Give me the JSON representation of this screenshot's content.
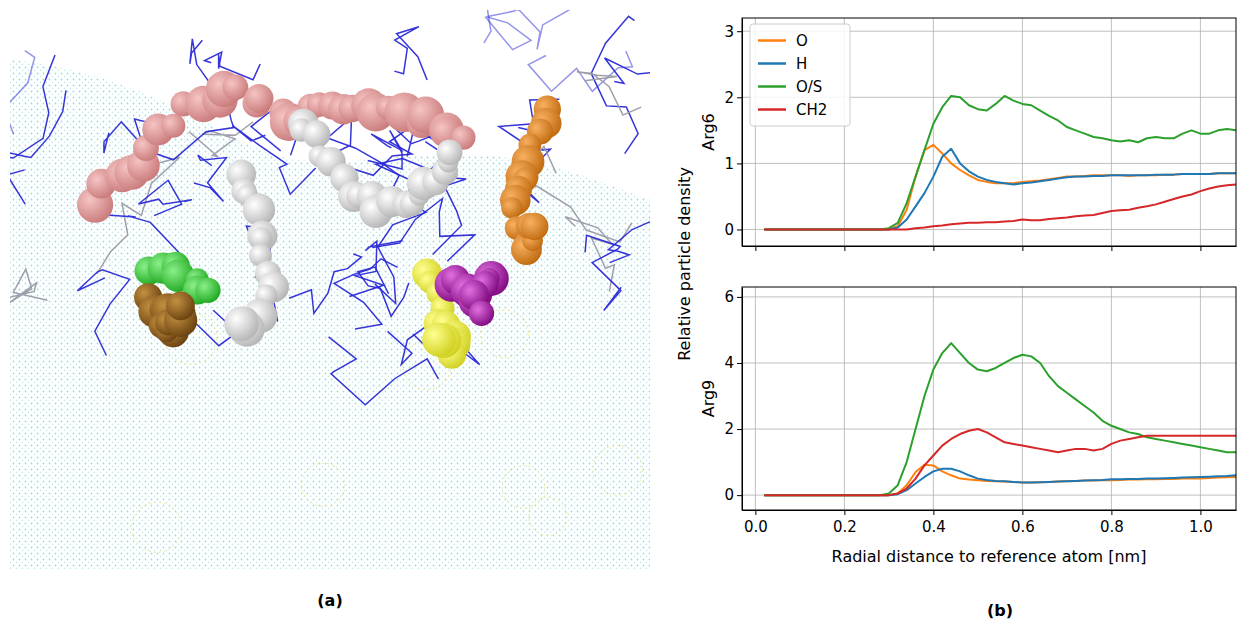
{
  "panel_labels": [
    "(a)",
    "(b)"
  ],
  "supylabel": "Relative particle density",
  "chart_data": [
    {
      "type": "line",
      "ylabel": "Arg6",
      "grid": true,
      "legend": "upper left",
      "tick_labels": "y",
      "xlim": [
        -0.03,
        1.08
      ],
      "ylim": [
        -0.25,
        3.2
      ],
      "xticks": [
        0,
        0.2,
        0.4,
        0.6,
        0.8,
        1
      ],
      "yticks": [
        0,
        1,
        2,
        3
      ],
      "x": [
        0.02,
        0.04,
        0.06,
        0.08,
        0.1,
        0.12,
        0.14,
        0.16,
        0.18,
        0.2,
        0.22,
        0.24,
        0.26,
        0.28,
        0.3,
        0.32,
        0.34,
        0.36,
        0.38,
        0.4,
        0.42,
        0.44,
        0.46,
        0.48,
        0.5,
        0.52,
        0.54,
        0.56,
        0.58,
        0.6,
        0.62,
        0.64,
        0.66,
        0.68,
        0.7,
        0.72,
        0.74,
        0.76,
        0.78,
        0.8,
        0.82,
        0.84,
        0.86,
        0.88,
        0.9,
        0.92,
        0.94,
        0.96,
        0.98,
        1.0,
        1.02,
        1.04,
        1.06,
        1.08
      ],
      "series": [
        {
          "name": "O",
          "color": "#ff7f0e",
          "values": [
            0,
            0,
            0,
            0,
            0,
            0,
            0,
            0,
            0,
            0,
            0,
            0,
            0,
            0,
            0,
            0.05,
            0.3,
            0.8,
            1.2,
            1.28,
            1.15,
            1.0,
            0.9,
            0.82,
            0.75,
            0.72,
            0.7,
            0.7,
            0.7,
            0.72,
            0.73,
            0.74,
            0.76,
            0.78,
            0.8,
            0.8,
            0.81,
            0.82,
            0.82,
            0.82,
            0.82,
            0.81,
            0.82,
            0.82,
            0.82,
            0.83,
            0.83,
            0.84,
            0.84,
            0.84,
            0.84,
            0.85,
            0.85,
            0.85
          ]
        },
        {
          "name": "H",
          "color": "#1f77b4",
          "values": [
            0,
            0,
            0,
            0,
            0,
            0,
            0,
            0,
            0,
            0,
            0,
            0,
            0,
            0,
            0,
            0.03,
            0.15,
            0.35,
            0.55,
            0.8,
            1.1,
            1.22,
            1.0,
            0.88,
            0.8,
            0.75,
            0.72,
            0.7,
            0.68,
            0.7,
            0.71,
            0.73,
            0.75,
            0.77,
            0.79,
            0.8,
            0.8,
            0.81,
            0.81,
            0.82,
            0.82,
            0.82,
            0.82,
            0.82,
            0.83,
            0.83,
            0.83,
            0.84,
            0.84,
            0.84,
            0.84,
            0.85,
            0.85,
            0.85
          ]
        },
        {
          "name": "O/S",
          "color": "#2ca02c",
          "values": [
            0,
            0,
            0,
            0,
            0,
            0,
            0,
            0,
            0,
            0,
            0,
            0,
            0,
            0,
            0.02,
            0.1,
            0.4,
            0.8,
            1.2,
            1.6,
            1.85,
            2.02,
            2.0,
            1.88,
            1.82,
            1.8,
            1.9,
            2.02,
            1.95,
            1.9,
            1.88,
            1.8,
            1.72,
            1.65,
            1.55,
            1.5,
            1.45,
            1.4,
            1.38,
            1.35,
            1.33,
            1.35,
            1.32,
            1.38,
            1.4,
            1.38,
            1.38,
            1.45,
            1.5,
            1.45,
            1.45,
            1.5,
            1.52,
            1.5
          ]
        },
        {
          "name": "CH2",
          "color": "#d62728",
          "values": [
            0,
            0,
            0,
            0,
            0,
            0,
            0,
            0,
            0,
            0,
            0,
            0,
            0,
            0,
            0,
            0,
            0,
            0.02,
            0.03,
            0.05,
            0.06,
            0.08,
            0.09,
            0.1,
            0.1,
            0.11,
            0.11,
            0.12,
            0.13,
            0.15,
            0.14,
            0.14,
            0.16,
            0.17,
            0.18,
            0.2,
            0.21,
            0.22,
            0.25,
            0.28,
            0.29,
            0.3,
            0.33,
            0.35,
            0.38,
            0.42,
            0.46,
            0.5,
            0.53,
            0.58,
            0.62,
            0.65,
            0.67,
            0.68
          ]
        }
      ]
    },
    {
      "type": "line",
      "ylabel": "Arg9",
      "xlabel": "Radial distance to reference atom [nm]",
      "grid": true,
      "xlim": [
        -0.03,
        1.08
      ],
      "ylim": [
        -0.45,
        6.3
      ],
      "xticks": [
        {
          "value": 0,
          "label": "0.0"
        },
        0.2,
        0.4,
        0.6,
        0.8,
        {
          "value": 1,
          "label": "1.0"
        }
      ],
      "yticks": [
        0,
        2,
        4,
        6
      ],
      "x": [
        0.02,
        0.04,
        0.06,
        0.08,
        0.1,
        0.12,
        0.14,
        0.16,
        0.18,
        0.2,
        0.22,
        0.24,
        0.26,
        0.28,
        0.3,
        0.32,
        0.34,
        0.36,
        0.38,
        0.4,
        0.42,
        0.44,
        0.46,
        0.48,
        0.5,
        0.52,
        0.54,
        0.56,
        0.58,
        0.6,
        0.62,
        0.64,
        0.66,
        0.68,
        0.7,
        0.72,
        0.74,
        0.76,
        0.78,
        0.8,
        0.82,
        0.84,
        0.86,
        0.88,
        0.9,
        0.92,
        0.94,
        0.96,
        0.98,
        1.0,
        1.02,
        1.04,
        1.06,
        1.08
      ],
      "series": [
        {
          "color": "#ff7f0e",
          "values": [
            0,
            0,
            0,
            0,
            0,
            0,
            0,
            0,
            0,
            0,
            0,
            0,
            0,
            0,
            0,
            0.05,
            0.3,
            0.7,
            0.92,
            0.9,
            0.72,
            0.6,
            0.5,
            0.47,
            0.45,
            0.43,
            0.42,
            0.41,
            0.4,
            0.38,
            0.38,
            0.39,
            0.4,
            0.41,
            0.42,
            0.43,
            0.44,
            0.44,
            0.45,
            0.45,
            0.46,
            0.47,
            0.47,
            0.48,
            0.48,
            0.49,
            0.49,
            0.5,
            0.5,
            0.5,
            0.52,
            0.53,
            0.54,
            0.55
          ]
        },
        {
          "color": "#1f77b4",
          "values": [
            0,
            0,
            0,
            0,
            0,
            0,
            0,
            0,
            0,
            0,
            0,
            0,
            0,
            0,
            0,
            0.03,
            0.15,
            0.35,
            0.55,
            0.72,
            0.8,
            0.8,
            0.72,
            0.6,
            0.5,
            0.46,
            0.43,
            0.42,
            0.4,
            0.38,
            0.38,
            0.39,
            0.4,
            0.41,
            0.42,
            0.43,
            0.44,
            0.45,
            0.46,
            0.48,
            0.48,
            0.49,
            0.49,
            0.5,
            0.5,
            0.51,
            0.52,
            0.53,
            0.54,
            0.55,
            0.56,
            0.57,
            0.58,
            0.6
          ]
        },
        {
          "color": "#2ca02c",
          "values": [
            0,
            0,
            0,
            0,
            0,
            0,
            0,
            0,
            0,
            0,
            0,
            0,
            0,
            0,
            0.05,
            0.3,
            1.0,
            2.0,
            3.0,
            3.8,
            4.3,
            4.6,
            4.3,
            4.0,
            3.8,
            3.75,
            3.85,
            4.0,
            4.15,
            4.25,
            4.2,
            4.0,
            3.6,
            3.3,
            3.1,
            2.9,
            2.7,
            2.5,
            2.25,
            2.1,
            2.0,
            1.9,
            1.85,
            1.75,
            1.7,
            1.65,
            1.6,
            1.55,
            1.5,
            1.45,
            1.4,
            1.35,
            1.3,
            1.3
          ]
        },
        {
          "color": "#d62728",
          "values": [
            0,
            0,
            0,
            0,
            0,
            0,
            0,
            0,
            0,
            0,
            0,
            0,
            0,
            0,
            0,
            0.05,
            0.2,
            0.5,
            0.9,
            1.2,
            1.5,
            1.7,
            1.85,
            1.95,
            2.0,
            1.9,
            1.75,
            1.6,
            1.55,
            1.5,
            1.45,
            1.4,
            1.35,
            1.3,
            1.35,
            1.4,
            1.4,
            1.35,
            1.4,
            1.55,
            1.65,
            1.7,
            1.75,
            1.8,
            1.8,
            1.8,
            1.8,
            1.8,
            1.8,
            1.8,
            1.8,
            1.8,
            1.8,
            1.8
          ]
        }
      ]
    }
  ]
}
